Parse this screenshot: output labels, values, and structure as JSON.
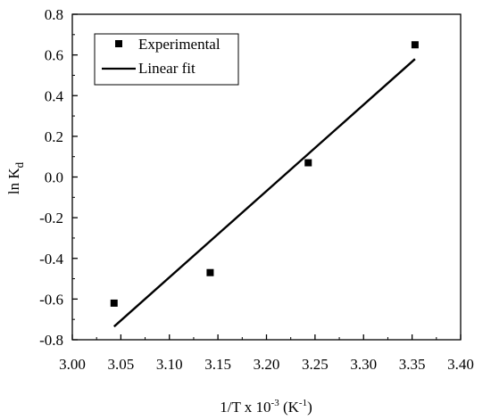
{
  "chart_data": {
    "type": "scatter",
    "xlabel": {
      "main": "1/T x 10",
      "exp": "-3",
      "unit_open": " (K",
      "unit_exp": "-1",
      "unit_close": ")"
    },
    "ylabel": {
      "main": "ln K",
      "sub": "d"
    },
    "xlim": [
      3.0,
      3.4
    ],
    "ylim": [
      -0.8,
      0.8
    ],
    "xticks": [
      "3.00",
      "3.05",
      "3.10",
      "3.15",
      "3.20",
      "3.25",
      "3.30",
      "3.35",
      "3.40"
    ],
    "yticks": [
      "-0.8",
      "-0.6",
      "-0.4",
      "-0.2",
      "0.0",
      "0.2",
      "0.4",
      "0.6",
      "0.8"
    ],
    "grid": false,
    "legend_position": "top-left",
    "series": [
      {
        "name": "Experimental",
        "kind": "scatter",
        "marker": "square",
        "color": "#000000",
        "points": [
          {
            "x": 3.043,
            "y": -0.62
          },
          {
            "x": 3.142,
            "y": -0.47
          },
          {
            "x": 3.243,
            "y": 0.07
          },
          {
            "x": 3.353,
            "y": 0.65
          }
        ]
      },
      {
        "name": "Linear fit",
        "kind": "line",
        "color": "#000000",
        "points": [
          {
            "x": 3.043,
            "y": -0.735
          },
          {
            "x": 3.353,
            "y": 0.58
          }
        ]
      }
    ]
  }
}
